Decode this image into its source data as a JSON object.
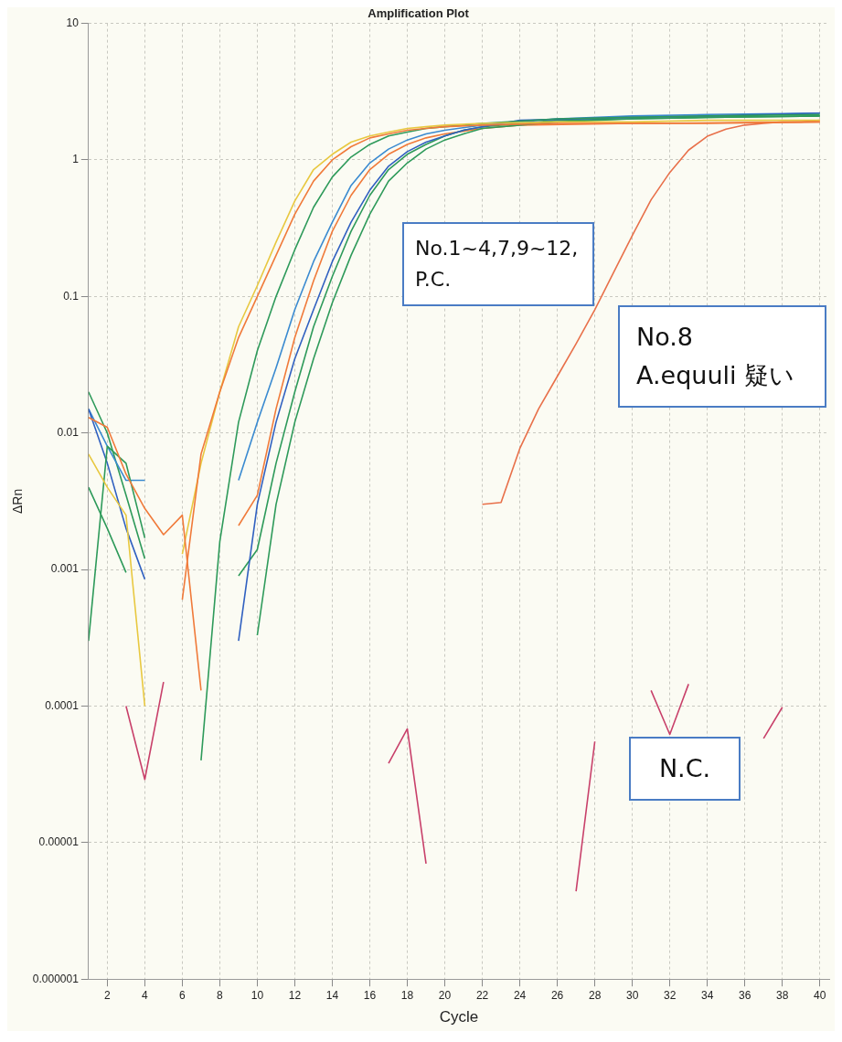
{
  "chart_data": {
    "type": "line",
    "title": "Amplification Plot",
    "xlabel": "Cycle",
    "ylabel": "ΔRn",
    "log": "y",
    "grid": true,
    "legend": false,
    "marker": "none",
    "line_style": "solid",
    "xlim": [
      1,
      40.5
    ],
    "xticks": [
      2,
      4,
      6,
      8,
      10,
      12,
      14,
      16,
      18,
      20,
      22,
      24,
      26,
      28,
      30,
      32,
      34,
      36,
      38,
      40
    ],
    "ylim": [
      1e-06,
      10
    ],
    "yticks": [
      {
        "value": 1e-06,
        "label": "0.000001"
      },
      {
        "value": 1e-05,
        "label": "0.00001"
      },
      {
        "value": 0.0001,
        "label": "0.0001"
      },
      {
        "value": 0.001,
        "label": "0.001"
      },
      {
        "value": 0.01,
        "label": "0.01"
      },
      {
        "value": 0.1,
        "label": "0.1"
      },
      {
        "value": 1,
        "label": "1"
      },
      {
        "value": 10,
        "label": "10"
      }
    ],
    "annotations": [
      "No.1~4,7,9~12,\nP.C.",
      "No.8\nA.equuli 疑い",
      "N.C."
    ],
    "series": [
      {
        "color": "#f07a3a",
        "x": [
          1,
          2,
          3,
          4,
          5,
          6,
          7
        ],
        "values": [
          0.013,
          0.011,
          0.005,
          0.0028,
          0.0018,
          0.0025,
          0.00013
        ]
      },
      {
        "color": "#f07a3a",
        "x": [
          6,
          7,
          8,
          9,
          10,
          11,
          12,
          13,
          14,
          15,
          16,
          17,
          18,
          19,
          20,
          22,
          26,
          30,
          34,
          40
        ],
        "values": [
          0.0006,
          0.007,
          0.02,
          0.05,
          0.1,
          0.2,
          0.4,
          0.7,
          1.0,
          1.25,
          1.45,
          1.55,
          1.65,
          1.7,
          1.75,
          1.8,
          1.85,
          1.85,
          1.85,
          1.9
        ]
      },
      {
        "color": "#e8c840",
        "x": [
          1,
          2,
          3,
          4
        ],
        "values": [
          0.007,
          0.004,
          0.0025,
          0.0001
        ]
      },
      {
        "color": "#e8c840",
        "x": [
          6,
          7,
          8,
          9,
          10,
          11,
          12,
          13,
          14,
          15,
          16,
          17,
          18,
          19,
          20,
          22,
          26,
          30,
          34,
          40
        ],
        "values": [
          0.0013,
          0.006,
          0.02,
          0.06,
          0.12,
          0.25,
          0.5,
          0.85,
          1.1,
          1.35,
          1.5,
          1.6,
          1.7,
          1.75,
          1.8,
          1.85,
          1.9,
          1.9,
          1.95,
          1.95
        ]
      },
      {
        "color": "#2e9a5a",
        "x": [
          1,
          2,
          3,
          4,
          5,
          7,
          8,
          9,
          10,
          11,
          12,
          13,
          14,
          15,
          16,
          17,
          18,
          19,
          20,
          22,
          26,
          30,
          34,
          40
        ],
        "values": [
          0.0003,
          0.008,
          0.006,
          0.0017,
          null,
          4e-05,
          0.0016,
          0.012,
          0.04,
          0.1,
          0.22,
          0.45,
          0.75,
          1.05,
          1.3,
          1.5,
          1.6,
          1.7,
          1.75,
          1.85,
          2.0,
          2.05,
          2.1,
          2.15
        ]
      },
      {
        "color": "#3060c0",
        "x": [
          1,
          2,
          3,
          4,
          5,
          9,
          10,
          11,
          12,
          13,
          14,
          15,
          16,
          17,
          18,
          19,
          20,
          21,
          22,
          24,
          30,
          34,
          40
        ],
        "values": [
          0.015,
          0.006,
          0.002,
          0.00085,
          null,
          0.0003,
          0.003,
          0.012,
          0.035,
          0.08,
          0.18,
          0.35,
          0.6,
          0.9,
          1.15,
          1.35,
          1.5,
          1.65,
          1.75,
          1.95,
          2.05,
          2.1,
          2.2
        ]
      },
      {
        "color": "#3a8ad0",
        "x": [
          1,
          2,
          3,
          4,
          5,
          9,
          10,
          11,
          12,
          13,
          14,
          15,
          16,
          17,
          18,
          19,
          20,
          22,
          26,
          30,
          34,
          40
        ],
        "values": [
          0.015,
          0.008,
          0.0045,
          0.0045,
          null,
          0.0045,
          0.012,
          0.03,
          0.08,
          0.18,
          0.35,
          0.65,
          0.95,
          1.2,
          1.4,
          1.55,
          1.65,
          1.8,
          2.0,
          2.1,
          2.15,
          2.2
        ]
      },
      {
        "color": "#2e9a5a",
        "x": [
          1,
          2,
          3,
          4,
          5,
          9,
          10,
          11,
          12,
          13,
          14,
          15,
          16,
          17,
          18,
          19,
          20,
          21,
          22,
          26,
          30,
          34,
          40
        ],
        "values": [
          0.02,
          0.01,
          0.0035,
          0.0012,
          null,
          0.0009,
          0.0014,
          0.006,
          0.02,
          0.06,
          0.14,
          0.3,
          0.55,
          0.85,
          1.1,
          1.3,
          1.5,
          1.65,
          1.75,
          1.95,
          2.0,
          2.05,
          2.1
        ]
      },
      {
        "color": "#2e9a5a",
        "x": [
          1,
          2,
          3,
          4,
          10,
          11,
          12,
          13,
          14,
          15,
          16,
          17,
          18,
          19,
          20,
          21,
          22,
          26,
          30,
          34,
          40
        ],
        "values": [
          0.004,
          0.002,
          0.00095,
          null,
          0.00033,
          0.003,
          0.012,
          0.035,
          0.09,
          0.2,
          0.4,
          0.7,
          0.95,
          1.2,
          1.4,
          1.55,
          1.7,
          1.9,
          2.0,
          2.05,
          2.1
        ]
      },
      {
        "color": "#f07a3a",
        "x": [
          9,
          10,
          11,
          12,
          13,
          14,
          15,
          16,
          17,
          18,
          19,
          20,
          22,
          24,
          30,
          40
        ],
        "values": [
          0.0021,
          0.0035,
          0.015,
          0.05,
          0.13,
          0.3,
          0.55,
          0.85,
          1.1,
          1.3,
          1.45,
          1.55,
          1.7,
          1.8,
          1.85,
          1.9
        ]
      },
      {
        "color": "#e8704a",
        "x": [
          22,
          23,
          24,
          25,
          26,
          27,
          28,
          29,
          30,
          31,
          32,
          33,
          34,
          35,
          36,
          37,
          38,
          39,
          40
        ],
        "values": [
          0.003,
          0.0031,
          0.0077,
          0.015,
          0.026,
          0.045,
          0.08,
          0.15,
          0.28,
          0.51,
          0.81,
          1.18,
          1.49,
          1.68,
          1.8,
          1.85,
          1.9,
          1.9,
          1.95
        ]
      },
      {
        "color": "#c8406a",
        "x": [
          3,
          4,
          5,
          6,
          17,
          18,
          19,
          20,
          27,
          28,
          29,
          31,
          32,
          33,
          34,
          37,
          38
        ],
        "values": [
          0.0001,
          2.9e-05,
          0.00015,
          null,
          3.8e-05,
          6.8e-05,
          7e-06,
          null,
          4.4e-06,
          5.5e-05,
          null,
          0.00013,
          6.2e-05,
          0.000145,
          null,
          5.8e-05,
          9.8e-05
        ]
      }
    ]
  }
}
